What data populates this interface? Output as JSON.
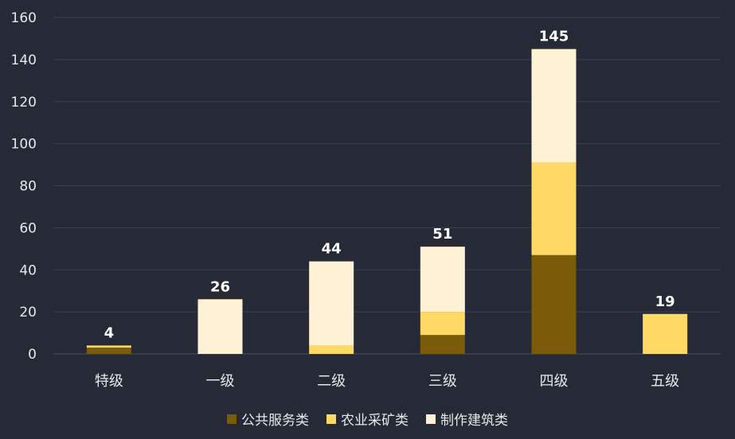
{
  "chart_data": {
    "type": "bar",
    "stacked": true,
    "categories": [
      "特级",
      "一级",
      "二级",
      "三级",
      "四级",
      "五级"
    ],
    "series": [
      {
        "name": "公共服务类",
        "values": [
          3,
          0,
          0,
          9,
          47,
          0
        ]
      },
      {
        "name": "农业采矿类",
        "values": [
          1,
          0,
          4,
          11,
          44,
          19
        ]
      },
      {
        "name": "制作建筑类",
        "values": [
          0,
          26,
          40,
          31,
          54,
          0
        ]
      }
    ],
    "totals": [
      4,
      26,
      44,
      51,
      145,
      19
    ],
    "ylim": [
      0,
      160
    ],
    "yticks": [
      0,
      20,
      40,
      60,
      80,
      100,
      120,
      140,
      160
    ],
    "grid": true,
    "legend_position": "bottom",
    "colors": [
      "#7a5b0a",
      "#ffd966",
      "#fff1d6"
    ],
    "background": "#252a36"
  }
}
